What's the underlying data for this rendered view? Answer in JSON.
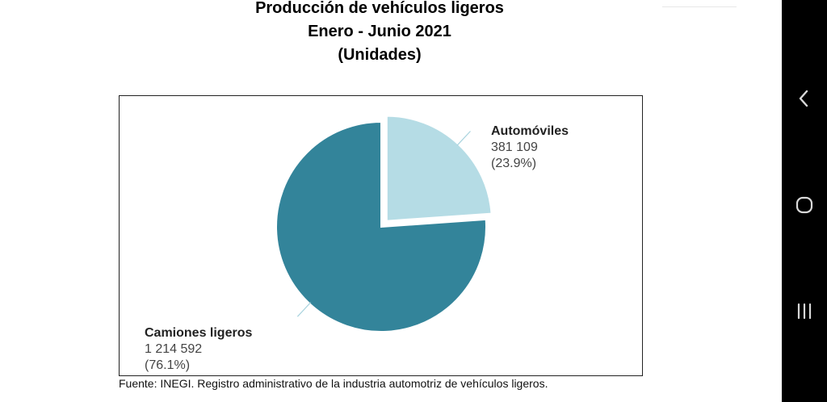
{
  "chart_data": {
    "type": "pie",
    "title": [
      "Producción de vehículos ligeros",
      "Enero - Junio 2021",
      "(Unidades)"
    ],
    "slices": [
      {
        "label": "Automóviles",
        "value": 381109,
        "value_text": "381 109",
        "percent_text": "(23.9%)",
        "percent": 23.9,
        "color": "#b5dce5",
        "exploded": true
      },
      {
        "label": "Camiones ligeros",
        "value": 1214592,
        "value_text": "1 214 592",
        "percent_text": "(76.1%)",
        "percent": 76.1,
        "color": "#33849a",
        "exploded": false
      }
    ],
    "start_angle_deg": 0,
    "direction": "clockwise",
    "leader_line_color": "#a8d3de"
  },
  "footnote": "Fuente: INEGI. Registro administrativo de la industria automotriz de vehículos ligeros.",
  "nav": {
    "back_icon": "back-chevron-icon",
    "home_icon": "home-circle-icon",
    "recent_icon": "recent-apps-icon",
    "background": "#000000",
    "icon_color": "#d8d8d8"
  }
}
